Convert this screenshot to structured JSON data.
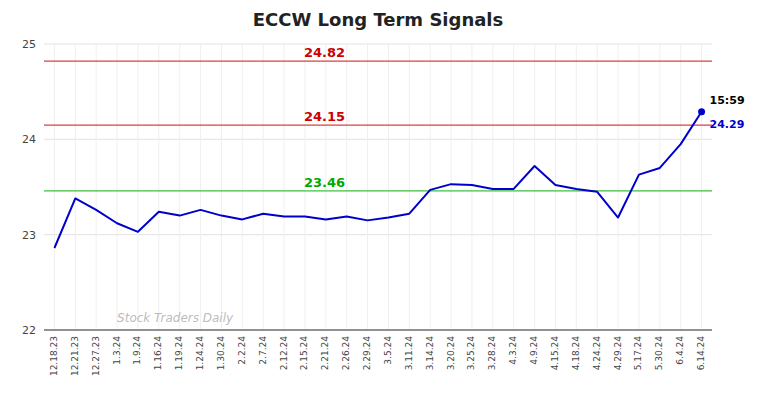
{
  "chart_data": {
    "type": "line",
    "title": "ECCW Long Term Signals",
    "categories": [
      "12.18.23",
      "12.21.23",
      "12.27.23",
      "1.3.24",
      "1.9.24",
      "1.16.24",
      "1.19.24",
      "1.24.24",
      "1.30.24",
      "2.2.24",
      "2.7.24",
      "2.12.24",
      "2.15.24",
      "2.21.24",
      "2.26.24",
      "2.29.24",
      "3.5.24",
      "3.11.24",
      "3.14.24",
      "3.20.24",
      "3.25.24",
      "3.28.24",
      "4.3.24",
      "4.9.24",
      "4.15.24",
      "4.18.24",
      "4.24.24",
      "4.29.24",
      "5.17.24",
      "5.30.24",
      "6.4.24",
      "6.14.24"
    ],
    "values": [
      22.86,
      23.38,
      23.26,
      23.12,
      23.03,
      23.24,
      23.2,
      23.26,
      23.2,
      23.16,
      23.22,
      23.19,
      23.19,
      23.16,
      23.19,
      23.15,
      23.18,
      23.22,
      23.47,
      23.53,
      23.52,
      23.48,
      23.48,
      23.72,
      23.52,
      23.48,
      23.45,
      23.18,
      23.63,
      23.7,
      23.95,
      24.29
    ],
    "color": "#0000cc",
    "ylim": [
      22,
      25
    ],
    "yticks": [
      22,
      23,
      24,
      25
    ],
    "grid": true,
    "hlines": [
      {
        "value": 23.46,
        "color": "#00aa00"
      },
      {
        "value": 24.15,
        "color": "#cc0000"
      },
      {
        "value": 24.82,
        "color": "#cc0000"
      }
    ],
    "annotations": [
      {
        "text": "15:59",
        "color": "#000000"
      },
      {
        "text": "24.29",
        "color": "#0000cc"
      },
      {
        "text": "Stock Traders Daily",
        "color": "#aaaaaa"
      }
    ]
  }
}
